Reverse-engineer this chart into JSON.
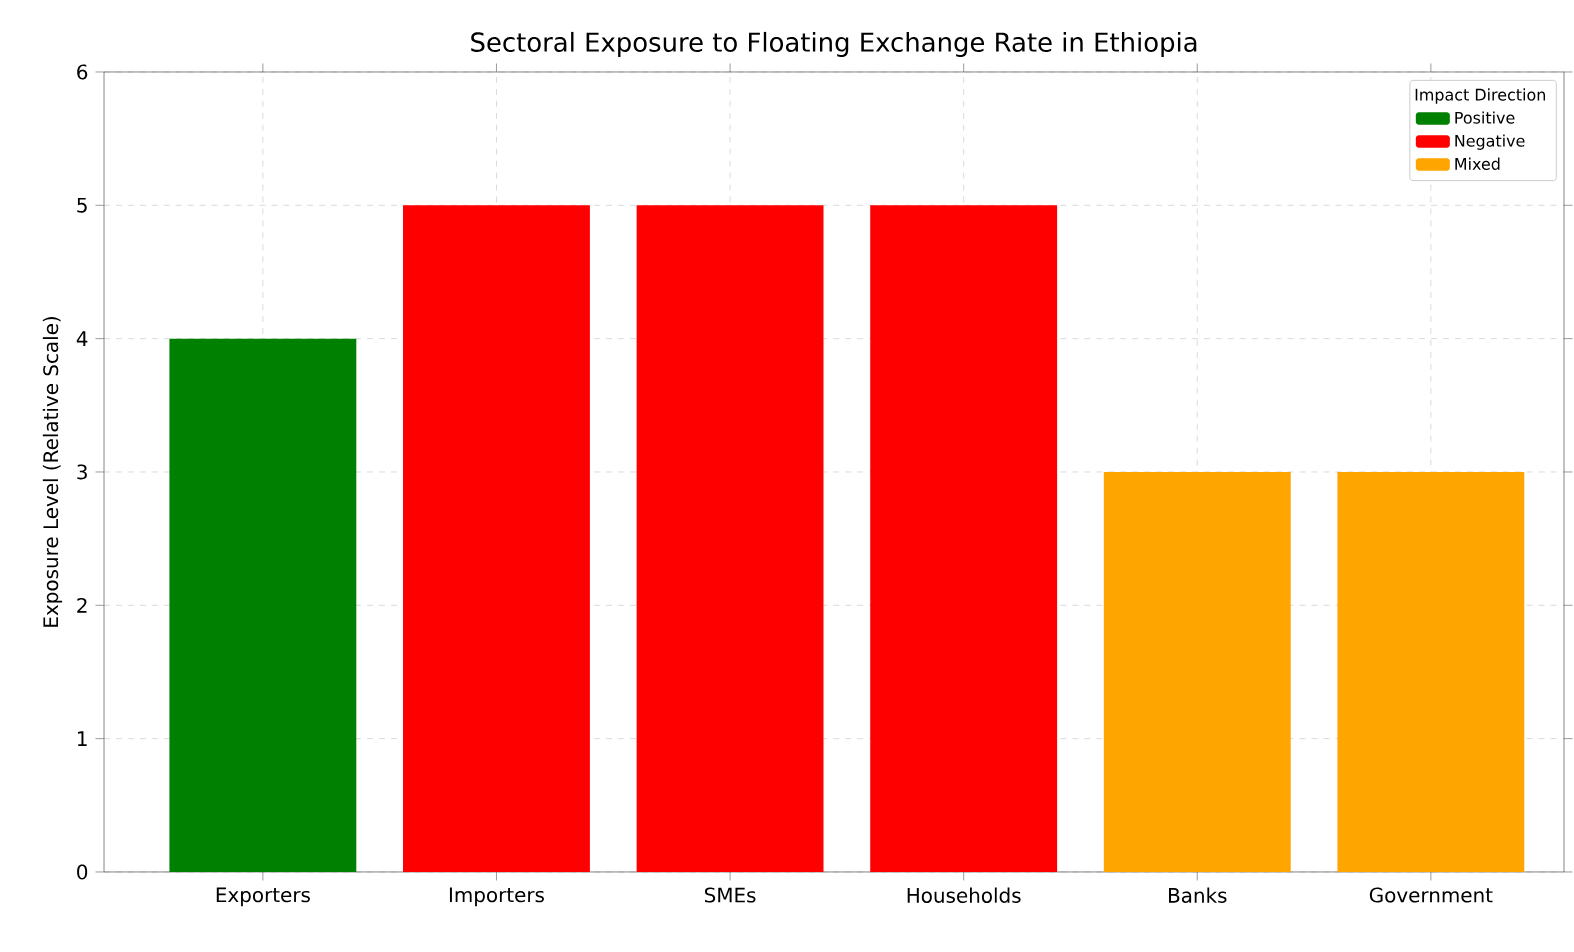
{
  "chart_data": {
    "type": "bar",
    "title": "Sectoral Exposure to Floating Exchange Rate in Ethiopia",
    "ylabel": "Exposure Level (Relative Scale)",
    "legend_title": "Impact Direction",
    "categories": [
      "Exporters",
      "Importers",
      "SMEs",
      "Households",
      "Banks",
      "Government"
    ],
    "series": [
      {
        "name": "Positive",
        "color": "#008000",
        "values": [
          4,
          null,
          null,
          null,
          null,
          null
        ]
      },
      {
        "name": "Negative",
        "color": "#ff0000",
        "values": [
          null,
          5,
          5,
          5,
          null,
          null
        ]
      },
      {
        "name": "Mixed",
        "color": "#ffa500",
        "values": [
          null,
          null,
          null,
          null,
          3,
          3
        ]
      }
    ],
    "ylim": [
      0,
      6
    ],
    "yticks": [
      0,
      1,
      2,
      3,
      4,
      5,
      6
    ],
    "grid": true,
    "legend": "top right"
  }
}
